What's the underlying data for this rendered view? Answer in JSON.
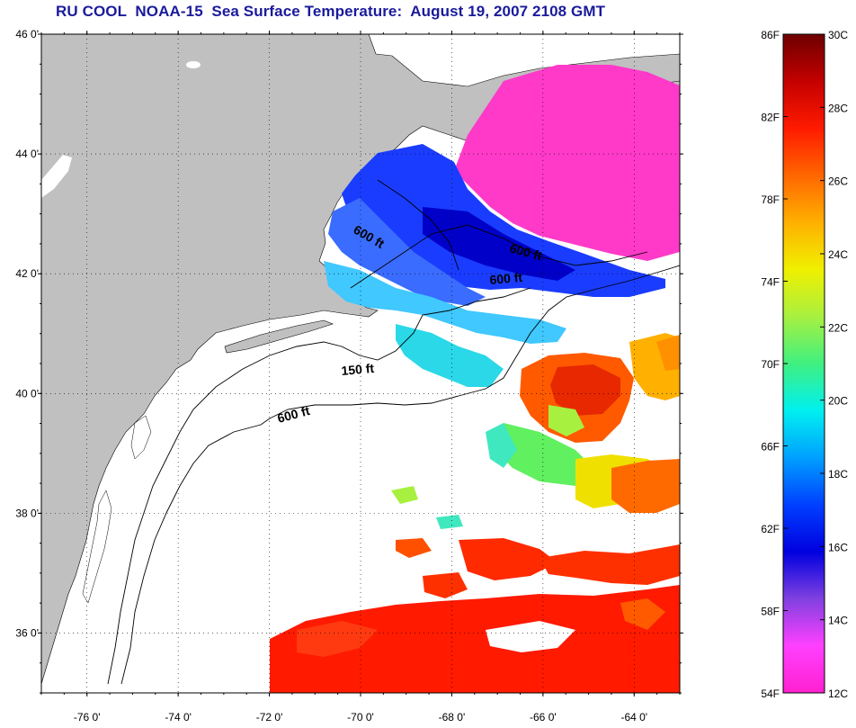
{
  "title": "RU COOL  NOAA-15  Sea Surface Temperature:  August 19, 2007 2108 GMT",
  "colors": {
    "land": "#c0c0c0",
    "title": "#1a1a9c",
    "grid": "#000000",
    "no_data": "#ffffff"
  },
  "map": {
    "lat_ticks": [
      "46 0'",
      "44 0'",
      "42 0'",
      "40 0'",
      "38 0'",
      "36 0'"
    ],
    "lon_ticks": [
      "-76 0'",
      "-74 0'",
      "-72 0'",
      "-70 0'",
      "-68 0'",
      "-66 0'",
      "-64 0'"
    ],
    "lat_values": [
      46,
      44,
      42,
      40,
      38,
      36
    ],
    "lon_values": [
      -76,
      -74,
      -72,
      -70,
      -68,
      -66,
      -64
    ],
    "extent": {
      "lon_min": -77,
      "lon_max": -63,
      "lat_min": 35,
      "lat_max": 46
    },
    "contour_labels": [
      "600 ft",
      "600 ft",
      "600 ft",
      "150 ft",
      "600 ft"
    ]
  },
  "colorbar": {
    "f_labels": [
      "86F",
      "82F",
      "78F",
      "74F",
      "70F",
      "66F",
      "62F",
      "58F",
      "54F"
    ],
    "c_labels": [
      "30C",
      "28C",
      "26C",
      "24C",
      "22C",
      "20C",
      "18C",
      "16C",
      "14C",
      "12C"
    ],
    "f_values": [
      86,
      82,
      78,
      74,
      70,
      66,
      62,
      58,
      54
    ],
    "c_values": [
      30,
      28,
      26,
      24,
      22,
      20,
      18,
      16,
      14,
      12
    ],
    "gradient": [
      "#6e0000",
      "#c40000",
      "#ff1a00",
      "#ff6600",
      "#ffb000",
      "#f0f000",
      "#a8f040",
      "#40f080",
      "#00f0f0",
      "#00a0ff",
      "#0040ff",
      "#0000e0",
      "#8040e0",
      "#ff40ff",
      "#ff20d0"
    ]
  }
}
